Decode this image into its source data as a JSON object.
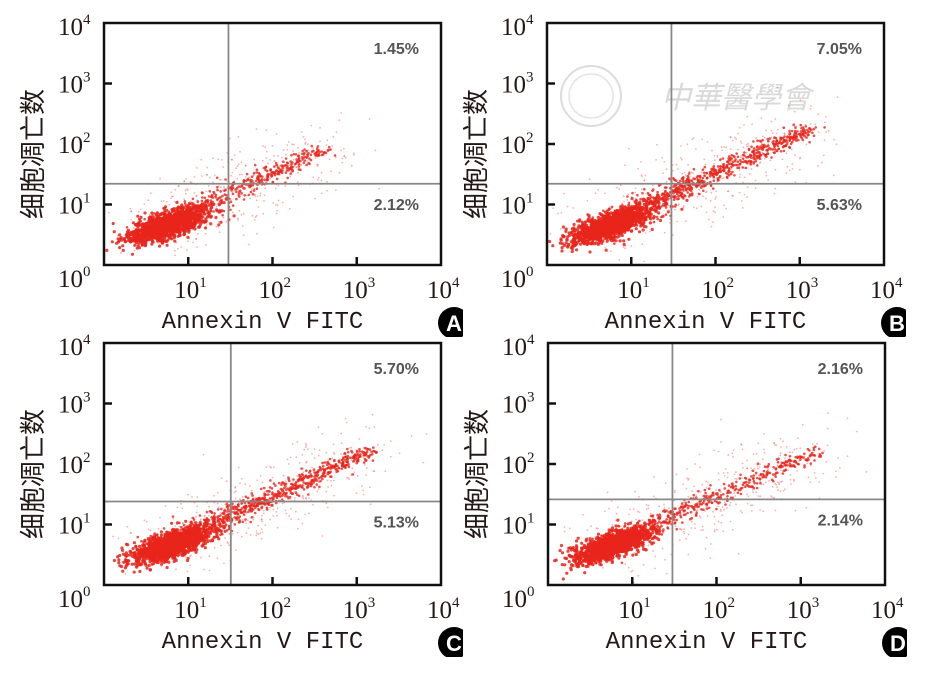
{
  "figure": {
    "watermark_text": "中華醫學會",
    "colors": {
      "dots": "#e8261c",
      "frame": "#111111",
      "gate": "#888888",
      "badge": "#000000"
    }
  },
  "chart_data": [
    {
      "type": "scatter",
      "panel_label": "A",
      "title": "",
      "xlabel": "Annexin V FITC",
      "ylabel": "细胞凋亡数",
      "xscale": "log",
      "yscale": "log",
      "xlim": [
        1,
        10000
      ],
      "ylim": [
        1,
        10000
      ],
      "x_ticks": [
        {
          "base": "10",
          "exp": "1",
          "value": 10
        },
        {
          "base": "10",
          "exp": "2",
          "value": 100
        },
        {
          "base": "10",
          "exp": "3",
          "value": 1000
        },
        {
          "base": "10",
          "exp": "4",
          "value": 10000
        }
      ],
      "y_ticks": [
        {
          "base": "10",
          "exp": "0",
          "value": 1
        },
        {
          "base": "10",
          "exp": "1",
          "value": 10
        },
        {
          "base": "10",
          "exp": "2",
          "value": 100
        },
        {
          "base": "10",
          "exp": "3",
          "value": 1000
        },
        {
          "base": "10",
          "exp": "4",
          "value": 10000
        }
      ],
      "gate_x": 30,
      "gate_y": 22,
      "quadrant_labels": {
        "upper_right": "1.45%",
        "lower_right": "2.12%"
      },
      "population": {
        "center": [
          4,
          4
        ],
        "tail_end": [
          400,
          80
        ],
        "density": "low-tail"
      },
      "watermark": false
    },
    {
      "type": "scatter",
      "panel_label": "B",
      "title": "",
      "xlabel": "Annexin V FITC",
      "ylabel": "细胞凋亡数",
      "xscale": "log",
      "yscale": "log",
      "xlim": [
        1,
        10000
      ],
      "ylim": [
        1,
        10000
      ],
      "x_ticks": [
        {
          "base": "10",
          "exp": "1",
          "value": 10
        },
        {
          "base": "10",
          "exp": "2",
          "value": 100
        },
        {
          "base": "10",
          "exp": "3",
          "value": 1000
        },
        {
          "base": "10",
          "exp": "4",
          "value": 10000
        }
      ],
      "y_ticks": [
        {
          "base": "10",
          "exp": "0",
          "value": 1
        },
        {
          "base": "10",
          "exp": "1",
          "value": 10
        },
        {
          "base": "10",
          "exp": "2",
          "value": 100
        },
        {
          "base": "10",
          "exp": "3",
          "value": 1000
        },
        {
          "base": "10",
          "exp": "4",
          "value": 10000
        }
      ],
      "gate_x": 30,
      "gate_y": 22,
      "quadrant_labels": {
        "upper_right": "7.05%",
        "lower_right": "5.63%"
      },
      "population": {
        "center": [
          4,
          4
        ],
        "tail_end": [
          1300,
          180
        ],
        "density": "high-tail"
      },
      "watermark": true
    },
    {
      "type": "scatter",
      "panel_label": "C",
      "title": "",
      "xlabel": "Annexin V FITC",
      "ylabel": "细胞凋亡数",
      "xscale": "log",
      "yscale": "log",
      "xlim": [
        1,
        10000
      ],
      "ylim": [
        1,
        10000
      ],
      "x_ticks": [
        {
          "base": "10",
          "exp": "1",
          "value": 10
        },
        {
          "base": "10",
          "exp": "2",
          "value": 100
        },
        {
          "base": "10",
          "exp": "3",
          "value": 1000
        },
        {
          "base": "10",
          "exp": "4",
          "value": 10000
        }
      ],
      "y_ticks": [
        {
          "base": "10",
          "exp": "0",
          "value": 1
        },
        {
          "base": "10",
          "exp": "1",
          "value": 10
        },
        {
          "base": "10",
          "exp": "2",
          "value": 100
        },
        {
          "base": "10",
          "exp": "3",
          "value": 1000
        },
        {
          "base": "10",
          "exp": "4",
          "value": 10000
        }
      ],
      "gate_x": 32,
      "gate_y": 24,
      "quadrant_labels": {
        "upper_right": "5.70%",
        "lower_right": "5.13%"
      },
      "population": {
        "center": [
          4.5,
          4
        ],
        "tail_end": [
          1400,
          160
        ],
        "density": "high-tail"
      },
      "watermark": false
    },
    {
      "type": "scatter",
      "panel_label": "D",
      "title": "",
      "xlabel": "Annexin V FITC",
      "ylabel": "细胞凋亡数",
      "xscale": "log",
      "yscale": "log",
      "xlim": [
        1,
        10000
      ],
      "ylim": [
        1,
        10000
      ],
      "x_ticks": [
        {
          "base": "10",
          "exp": "1",
          "value": 10
        },
        {
          "base": "10",
          "exp": "2",
          "value": 100
        },
        {
          "base": "10",
          "exp": "3",
          "value": 1000
        },
        {
          "base": "10",
          "exp": "4",
          "value": 10000
        }
      ],
      "y_ticks": [
        {
          "base": "10",
          "exp": "0",
          "value": 1
        },
        {
          "base": "10",
          "exp": "1",
          "value": 10
        },
        {
          "base": "10",
          "exp": "2",
          "value": 100
        },
        {
          "base": "10",
          "exp": "3",
          "value": 1000
        },
        {
          "base": "10",
          "exp": "4",
          "value": 10000
        }
      ],
      "gate_x": 30,
      "gate_y": 26,
      "quadrant_labels": {
        "upper_right": "2.16%",
        "lower_right": "2.14%"
      },
      "population": {
        "center": [
          4,
          4
        ],
        "tail_end": [
          1500,
          160
        ],
        "density": "low-tail"
      },
      "watermark": false
    }
  ]
}
